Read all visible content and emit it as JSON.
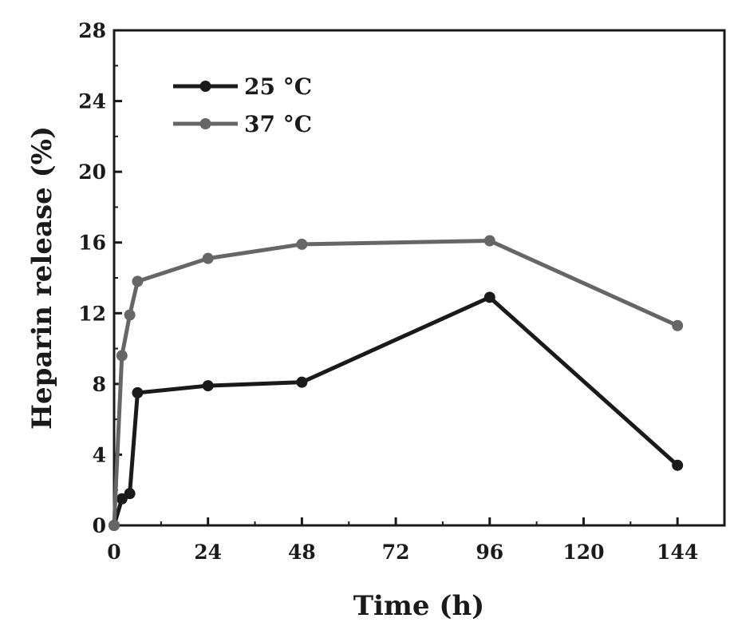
{
  "chart_data": {
    "type": "line",
    "xlabel": "Time (h)",
    "ylabel": "Heparin release (%)",
    "xlim": [
      0,
      156
    ],
    "ylim": [
      0,
      28
    ],
    "xticks": [
      0,
      24,
      48,
      72,
      96,
      120,
      144
    ],
    "yticks": [
      0,
      4,
      8,
      12,
      16,
      20,
      24,
      28
    ],
    "legend_position": "top-left",
    "grid": false,
    "series": [
      {
        "name": "25 °C",
        "color": "#1a1a1a",
        "x": [
          0,
          2,
          4,
          6,
          24,
          48,
          96,
          144
        ],
        "y": [
          0,
          1.5,
          1.8,
          7.5,
          7.9,
          8.1,
          12.9,
          3.4
        ]
      },
      {
        "name": "37 °C",
        "color": "#666666",
        "x": [
          0,
          2,
          4,
          6,
          24,
          48,
          96,
          144
        ],
        "y": [
          0,
          9.6,
          11.9,
          13.8,
          15.1,
          15.9,
          16.1,
          11.3
        ]
      }
    ]
  }
}
